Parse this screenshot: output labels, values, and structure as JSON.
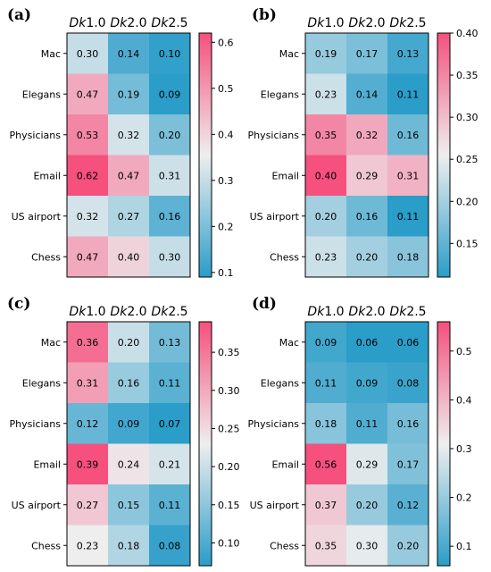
{
  "colormap": {
    "low": "#2a9dc9",
    "mid": "#eeeeee",
    "high": "#f5507e"
  },
  "chart_data": [
    {
      "type": "heatmap",
      "panel_label": "(a)",
      "columns": [
        {
          "prefix": "Dk",
          "suffix": "1.0"
        },
        {
          "prefix": "Dk",
          "suffix": "2.0"
        },
        {
          "prefix": "Dk",
          "suffix": "2.5"
        }
      ],
      "rows": [
        "Mac",
        "Elegans",
        "Physicians",
        "Email",
        "US airport",
        "Chess"
      ],
      "values": [
        [
          0.3,
          0.14,
          0.1
        ],
        [
          0.47,
          0.19,
          0.09
        ],
        [
          0.53,
          0.32,
          0.2
        ],
        [
          0.62,
          0.47,
          0.31
        ],
        [
          0.32,
          0.27,
          0.16
        ],
        [
          0.47,
          0.4,
          0.3
        ]
      ],
      "labels": [
        [
          "0.30",
          "0.14",
          "0.10"
        ],
        [
          "0.47",
          "0.19",
          "0.09"
        ],
        [
          "0.53",
          "0.32",
          "0.20"
        ],
        [
          "0.62",
          "0.47",
          "0.31"
        ],
        [
          "0.32",
          "0.27",
          "0.16"
        ],
        [
          "0.47",
          "0.40",
          "0.30"
        ]
      ],
      "colorbar": {
        "min": 0.09,
        "max": 0.62,
        "ticks": [
          0.1,
          0.2,
          0.3,
          0.4,
          0.5,
          0.6
        ],
        "tick_labels": [
          "0.1",
          "0.2",
          "0.3",
          "0.4",
          "0.5",
          "0.6"
        ]
      }
    },
    {
      "type": "heatmap",
      "panel_label": "(b)",
      "columns": [
        {
          "prefix": "Dk",
          "suffix": "1.0"
        },
        {
          "prefix": "Dk",
          "suffix": "2.0"
        },
        {
          "prefix": "Dk",
          "suffix": "2.5"
        }
      ],
      "rows": [
        "Mac",
        "Elegans",
        "Physicians",
        "Email",
        "US airport",
        "Chess"
      ],
      "values": [
        [
          0.19,
          0.17,
          0.13
        ],
        [
          0.23,
          0.14,
          0.11
        ],
        [
          0.35,
          0.32,
          0.16
        ],
        [
          0.4,
          0.29,
          0.31
        ],
        [
          0.2,
          0.16,
          0.11
        ],
        [
          0.23,
          0.2,
          0.18
        ]
      ],
      "labels": [
        [
          "0.19",
          "0.17",
          "0.13"
        ],
        [
          "0.23",
          "0.14",
          "0.11"
        ],
        [
          "0.35",
          "0.32",
          "0.16"
        ],
        [
          "0.40",
          "0.29",
          "0.31"
        ],
        [
          "0.20",
          "0.16",
          "0.11"
        ],
        [
          "0.23",
          "0.20",
          "0.18"
        ]
      ],
      "colorbar": {
        "min": 0.11,
        "max": 0.4,
        "ticks": [
          0.15,
          0.2,
          0.25,
          0.3,
          0.35,
          0.4
        ],
        "tick_labels": [
          "0.15",
          "0.20",
          "0.25",
          "0.30",
          "0.35",
          "0.40"
        ]
      }
    },
    {
      "type": "heatmap",
      "panel_label": "(c)",
      "columns": [
        {
          "prefix": "Dk",
          "suffix": "1.0"
        },
        {
          "prefix": "Dk",
          "suffix": "2.0"
        },
        {
          "prefix": "Dk",
          "suffix": "2.5"
        }
      ],
      "rows": [
        "Mac",
        "Elegans",
        "Physicians",
        "Email",
        "US airport",
        "Chess"
      ],
      "values": [
        [
          0.36,
          0.2,
          0.13
        ],
        [
          0.31,
          0.16,
          0.11
        ],
        [
          0.12,
          0.09,
          0.07
        ],
        [
          0.39,
          0.24,
          0.21
        ],
        [
          0.27,
          0.15,
          0.11
        ],
        [
          0.23,
          0.18,
          0.08
        ]
      ],
      "labels": [
        [
          "0.36",
          "0.20",
          "0.13"
        ],
        [
          "0.31",
          "0.16",
          "0.11"
        ],
        [
          "0.12",
          "0.09",
          "0.07"
        ],
        [
          "0.39",
          "0.24",
          "0.21"
        ],
        [
          "0.27",
          "0.15",
          "0.11"
        ],
        [
          "0.23",
          "0.18",
          "0.08"
        ]
      ],
      "colorbar": {
        "min": 0.07,
        "max": 0.39,
        "ticks": [
          0.1,
          0.15,
          0.2,
          0.25,
          0.3,
          0.35
        ],
        "tick_labels": [
          "0.10",
          "0.15",
          "0.20",
          "0.25",
          "0.30",
          "0.35"
        ]
      }
    },
    {
      "type": "heatmap",
      "panel_label": "(d)",
      "columns": [
        {
          "prefix": "Dk",
          "suffix": "1.0"
        },
        {
          "prefix": "Dk",
          "suffix": "2.0"
        },
        {
          "prefix": "Dk",
          "suffix": "2.5"
        }
      ],
      "rows": [
        "Mac",
        "Elegans",
        "Physicians",
        "Email",
        "US airport",
        "Chess"
      ],
      "values": [
        [
          0.09,
          0.06,
          0.06
        ],
        [
          0.11,
          0.09,
          0.08
        ],
        [
          0.18,
          0.11,
          0.16
        ],
        [
          0.56,
          0.29,
          0.17
        ],
        [
          0.37,
          0.2,
          0.12
        ],
        [
          0.35,
          0.3,
          0.2
        ]
      ],
      "labels": [
        [
          "0.09",
          "0.06",
          "0.06"
        ],
        [
          "0.11",
          "0.09",
          "0.08"
        ],
        [
          "0.18",
          "0.11",
          "0.16"
        ],
        [
          "0.56",
          "0.29",
          "0.17"
        ],
        [
          "0.37",
          "0.20",
          "0.12"
        ],
        [
          "0.35",
          "0.30",
          "0.20"
        ]
      ],
      "colorbar": {
        "min": 0.06,
        "max": 0.56,
        "ticks": [
          0.1,
          0.2,
          0.3,
          0.4,
          0.5
        ],
        "tick_labels": [
          "0.1",
          "0.2",
          "0.3",
          "0.4",
          "0.5"
        ]
      }
    }
  ]
}
